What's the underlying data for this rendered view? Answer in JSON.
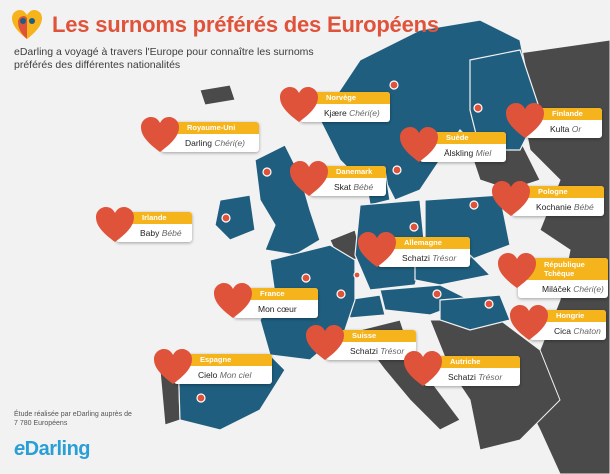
{
  "header": {
    "title": "Les surnoms préférés des Européens",
    "subtitle": "eDarling a voyagé à travers l'Europe pour connaître les surnoms préférés des différentes nationalités"
  },
  "footer": {
    "footnote": "Étude réalisée par eDarling auprès de 7 780 Européens",
    "brand": "Darling",
    "brand_prefix": "e"
  },
  "colors": {
    "background": "#f2f2f2",
    "map_blue": "#1f5e7f",
    "map_grey": "#4a4a4a",
    "heart": "#e0533b",
    "label_bar": "#f5b41b",
    "dot": "#e0533b",
    "brand": "#2a9fd6"
  },
  "labels": [
    {
      "country": "Norvège",
      "nickname": "Kjære",
      "translation": "Chéri(e)"
    },
    {
      "country": "Royaume-Uni",
      "nickname": "Darling",
      "translation": "Chéri(e)"
    },
    {
      "country": "Suède",
      "nickname": "Älskling",
      "translation": "Miel"
    },
    {
      "country": "Finlande",
      "nickname": "Kulta",
      "translation": "Or"
    },
    {
      "country": "Danemark",
      "nickname": "Skat",
      "translation": "Bébé"
    },
    {
      "country": "Pologne",
      "nickname": "Kochanie",
      "translation": "Bébé"
    },
    {
      "country": "Irlande",
      "nickname": "Baby",
      "translation": "Bébé"
    },
    {
      "country": "Allemagne",
      "nickname": "Schatzi",
      "translation": "Trésor"
    },
    {
      "country": "République Tchèque",
      "nickname": "Miláček",
      "translation": "Chéri(e)"
    },
    {
      "country": "France",
      "nickname": "Mon cœur",
      "translation": ""
    },
    {
      "country": "Hongrie",
      "nickname": "Cica",
      "translation": "Chaton"
    },
    {
      "country": "Suisse",
      "nickname": "Schatzi",
      "translation": "Trésor"
    },
    {
      "country": "Espagne",
      "nickname": "Cielo",
      "translation": "Mon ciel"
    },
    {
      "country": "Autriche",
      "nickname": "Schatzi",
      "translation": "Trésor"
    }
  ]
}
